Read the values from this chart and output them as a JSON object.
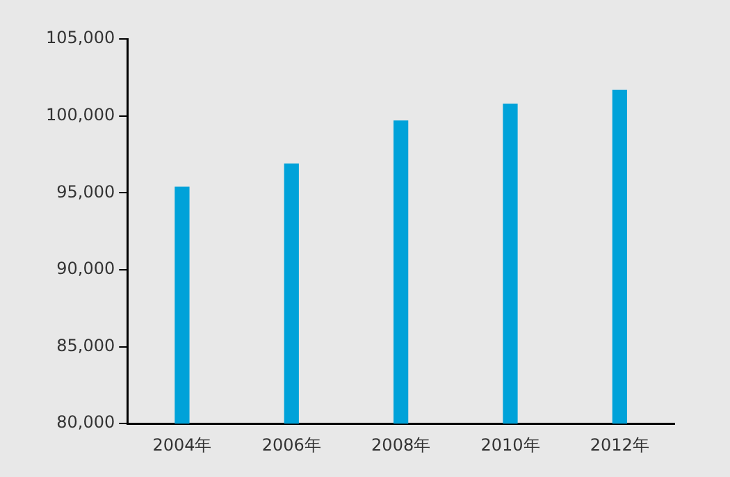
{
  "chart_data": {
    "type": "bar",
    "categories": [
      "2004年",
      "2006年",
      "2008年",
      "2010年",
      "2012年"
    ],
    "values": [
      95400,
      96900,
      99700,
      100800,
      101700
    ],
    "color": "#00a2d9",
    "ylim": [
      80000,
      105000
    ],
    "yticks": [
      {
        "value": 80000,
        "label": "80,000"
      },
      {
        "value": 85000,
        "label": "85,000"
      },
      {
        "value": 90000,
        "label": "90,000"
      },
      {
        "value": 95000,
        "label": "95,000"
      },
      {
        "value": 100000,
        "label": "100,000"
      },
      {
        "value": 105000,
        "label": "105,000"
      }
    ],
    "grid": false,
    "legend": false
  }
}
